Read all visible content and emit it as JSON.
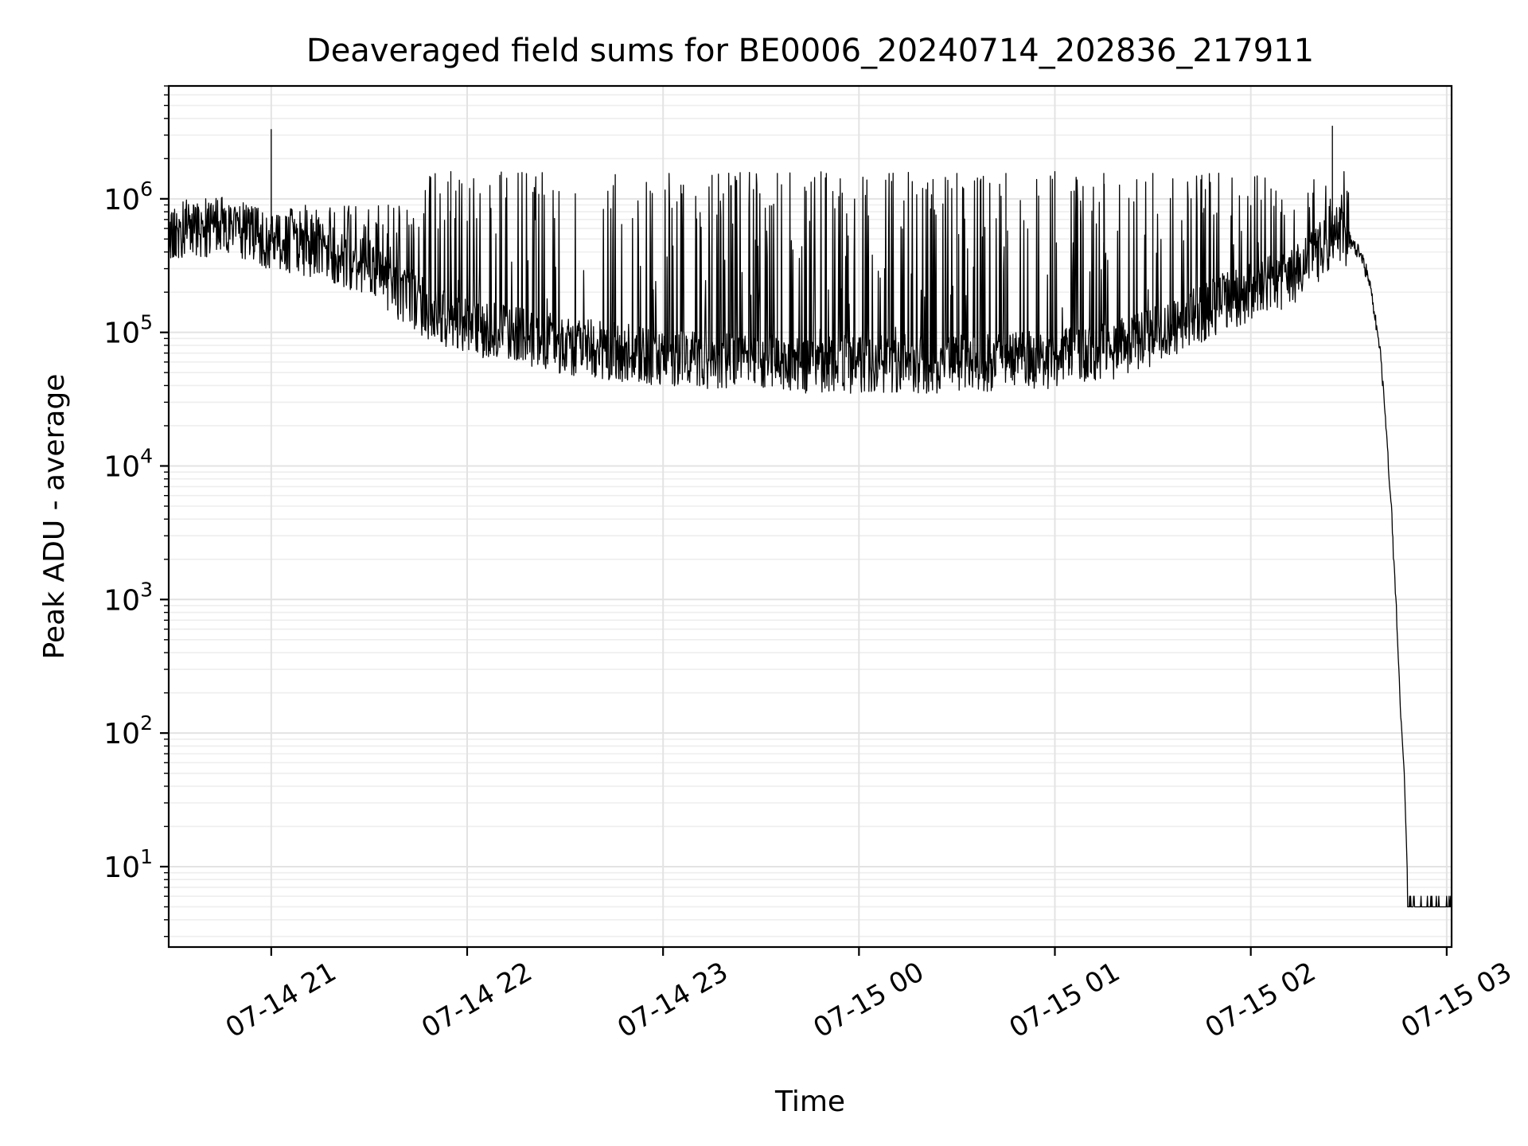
{
  "chart_data": {
    "type": "line",
    "title": "Deaveraged field sums for BE0006_20240714_202836_217911",
    "xlabel": "Time",
    "ylabel": "Peak ADU - average",
    "yscale": "log",
    "ylim": [
      2.5,
      7000000
    ],
    "xlim": [
      "2024-07-14 20:28:36",
      "2024-07-15 03:01:30"
    ],
    "grid": true,
    "line_color": "#000000",
    "x_ticks": [
      {
        "value": "2024-07-14 21:00",
        "label": "07-14 21"
      },
      {
        "value": "2024-07-14 22:00",
        "label": "07-14 22"
      },
      {
        "value": "2024-07-14 23:00",
        "label": "07-14 23"
      },
      {
        "value": "2024-07-15 00:00",
        "label": "07-15 00"
      },
      {
        "value": "2024-07-15 01:00",
        "label": "07-15 01"
      },
      {
        "value": "2024-07-15 02:00",
        "label": "07-15 02"
      },
      {
        "value": "2024-07-15 03:00",
        "label": "07-15 03"
      }
    ],
    "y_ticks": [
      {
        "value": 10,
        "base": "10",
        "exp": "1"
      },
      {
        "value": 100,
        "base": "10",
        "exp": "2"
      },
      {
        "value": 1000,
        "base": "10",
        "exp": "3"
      },
      {
        "value": 10000,
        "base": "10",
        "exp": "4"
      },
      {
        "value": 100000,
        "base": "10",
        "exp": "5"
      },
      {
        "value": 1000000,
        "base": "10",
        "exp": "6"
      }
    ],
    "series": [
      {
        "x": [
          "2024-07-14 20:28:36",
          "2024-07-14 20:45",
          "2024-07-14 20:50",
          "2024-07-14 21:00",
          "2024-07-14 21:15",
          "2024-07-14 21:30",
          "2024-07-14 21:45",
          "2024-07-14 22:00",
          "2024-07-14 22:15",
          "2024-07-14 22:30",
          "2024-07-14 22:45",
          "2024-07-14 23:00",
          "2024-07-14 23:15",
          "2024-07-14 23:30",
          "2024-07-14 23:45",
          "2024-07-15 00:00",
          "2024-07-15 00:15",
          "2024-07-15 00:30",
          "2024-07-15 00:45",
          "2024-07-15 01:00",
          "2024-07-15 01:15",
          "2024-07-15 01:30",
          "2024-07-15 01:45",
          "2024-07-15 02:00",
          "2024-07-15 02:15",
          "2024-07-15 02:20",
          "2024-07-15 02:26",
          "2024-07-15 02:30",
          "2024-07-15 02:34",
          "2024-07-15 02:37",
          "2024-07-15 02:40",
          "2024-07-15 02:43",
          "2024-07-15 02:45",
          "2024-07-15 02:46",
          "2024-07-15 02:47",
          "2024-07-15 02:48",
          "2024-07-15 02:50",
          "2024-07-15 03:00",
          "2024-07-15 03:01:30"
        ],
        "y": [
          580000,
          620000,
          600000,
          480000,
          420000,
          300000,
          160000,
          110000,
          95000,
          80000,
          72000,
          66000,
          62000,
          60000,
          58000,
          57000,
          57000,
          58000,
          60000,
          63000,
          70000,
          90000,
          140000,
          200000,
          280000,
          380000,
          550000,
          500000,
          380000,
          200000,
          60000,
          5000,
          500,
          130,
          50,
          8,
          5,
          5,
          5
        ],
        "spikes": [
          {
            "x": "2024-07-14 21:00",
            "y": 3300000
          },
          {
            "x": "2024-07-14 21:55",
            "y": 1600000
          },
          {
            "x": "2024-07-14 22:10",
            "y": 1500000
          },
          {
            "x": "2024-07-14 23:15",
            "y": 1500000
          },
          {
            "x": "2024-07-14 23:35",
            "y": 1550000
          },
          {
            "x": "2024-07-14 23:50",
            "y": 1550000
          },
          {
            "x": "2024-07-15 00:30",
            "y": 1550000
          },
          {
            "x": "2024-07-15 00:45",
            "y": 1550000
          },
          {
            "x": "2024-07-15 01:00",
            "y": 1600000
          },
          {
            "x": "2024-07-15 01:15",
            "y": 1550000
          },
          {
            "x": "2024-07-15 01:30",
            "y": 1550000
          },
          {
            "x": "2024-07-15 01:45",
            "y": 1500000
          },
          {
            "x": "2024-07-15 02:25",
            "y": 3500000
          }
        ]
      }
    ]
  }
}
